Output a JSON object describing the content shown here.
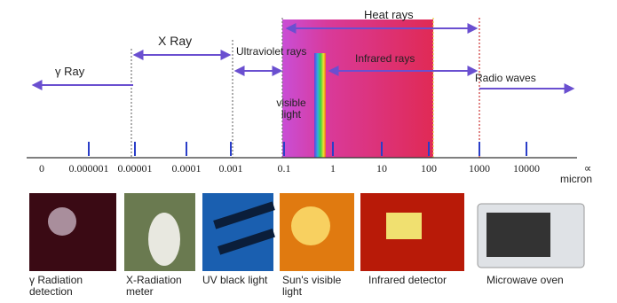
{
  "bands": [
    {
      "label": "γ Ray"
    },
    {
      "label": "X Ray"
    },
    {
      "label": "Ultraviolet rays"
    },
    {
      "label": "Heat rays"
    },
    {
      "label": "visible light"
    },
    {
      "label": "Infrared rays"
    },
    {
      "label": "Radio waves"
    }
  ],
  "scale": {
    "labels": [
      "0",
      "0.000001",
      "0.00001",
      "0.0001",
      "0.001",
      "0.1",
      "1",
      "10",
      "100",
      "1000",
      "10000",
      "∝"
    ],
    "unit": "micron"
  },
  "pictures": [
    {
      "caption": "γ Radiation detection"
    },
    {
      "caption": "X-Radiation meter"
    },
    {
      "caption": "UV black light"
    },
    {
      "caption": "Sun's visible light"
    },
    {
      "caption": "Infrared detector"
    },
    {
      "caption": "Microwave oven"
    }
  ]
}
